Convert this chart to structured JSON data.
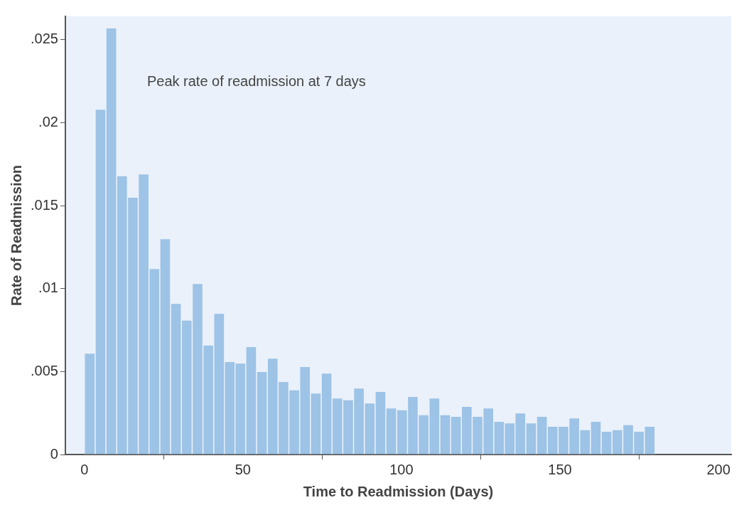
{
  "chart_data": {
    "type": "histogram",
    "xlabel": "Time to Readmission (Days)",
    "ylabel": "Rate of Readmission",
    "annotations": [
      "Peak rate of readmission at 7 days"
    ],
    "bins": [
      0,
      3.4,
      6.8,
      10.2,
      13.6,
      17.0,
      20.4,
      23.8,
      27.2,
      30.6,
      34.0,
      37.4,
      40.8,
      44.2,
      47.5,
      50.9,
      54.3,
      57.7,
      61.1,
      64.5,
      67.9,
      71.3,
      74.7,
      78.1,
      81.5,
      84.9,
      88.3,
      91.7,
      95.1,
      98.5,
      101.9,
      105.3,
      108.7,
      112.1,
      115.5,
      118.9,
      122.3,
      125.7,
      129.1,
      132.5,
      135.8,
      139.2,
      142.6,
      146.0,
      149.4,
      152.8,
      156.2,
      159.6,
      163.0,
      166.4,
      169.8,
      173.2,
      176.6,
      180
    ],
    "values": [
      0.0061,
      0.0208,
      0.0257,
      0.0168,
      0.0155,
      0.0169,
      0.0112,
      0.013,
      0.0091,
      0.0081,
      0.0103,
      0.0066,
      0.0085,
      0.0056,
      0.0055,
      0.0065,
      0.005,
      0.0058,
      0.0044,
      0.0039,
      0.0053,
      0.0037,
      0.0049,
      0.0034,
      0.0033,
      0.004,
      0.0031,
      0.0038,
      0.0028,
      0.0027,
      0.0035,
      0.0024,
      0.0034,
      0.0024,
      0.0023,
      0.0029,
      0.0023,
      0.0028,
      0.002,
      0.0019,
      0.0025,
      0.0019,
      0.0023,
      0.0017,
      0.0017,
      0.0022,
      0.0015,
      0.002,
      0.0014,
      0.0015,
      0.0018,
      0.0014,
      0.0017
    ],
    "color": "#9dc3e6",
    "xlim": [
      -6,
      204
    ],
    "xticks": [
      0,
      50,
      100,
      150,
      200
    ],
    "ylim": [
      0,
      0.0264
    ],
    "yticks": [
      0,
      {
        "value": 0.005,
        "label": ".005"
      },
      {
        "value": 0.01,
        "label": ".01"
      },
      {
        "value": 0.015,
        "label": ".015"
      },
      {
        "value": 0.02,
        "label": ".02"
      },
      {
        "value": 0.025,
        "label": ".025"
      }
    ],
    "grid": false,
    "legend": false
  }
}
